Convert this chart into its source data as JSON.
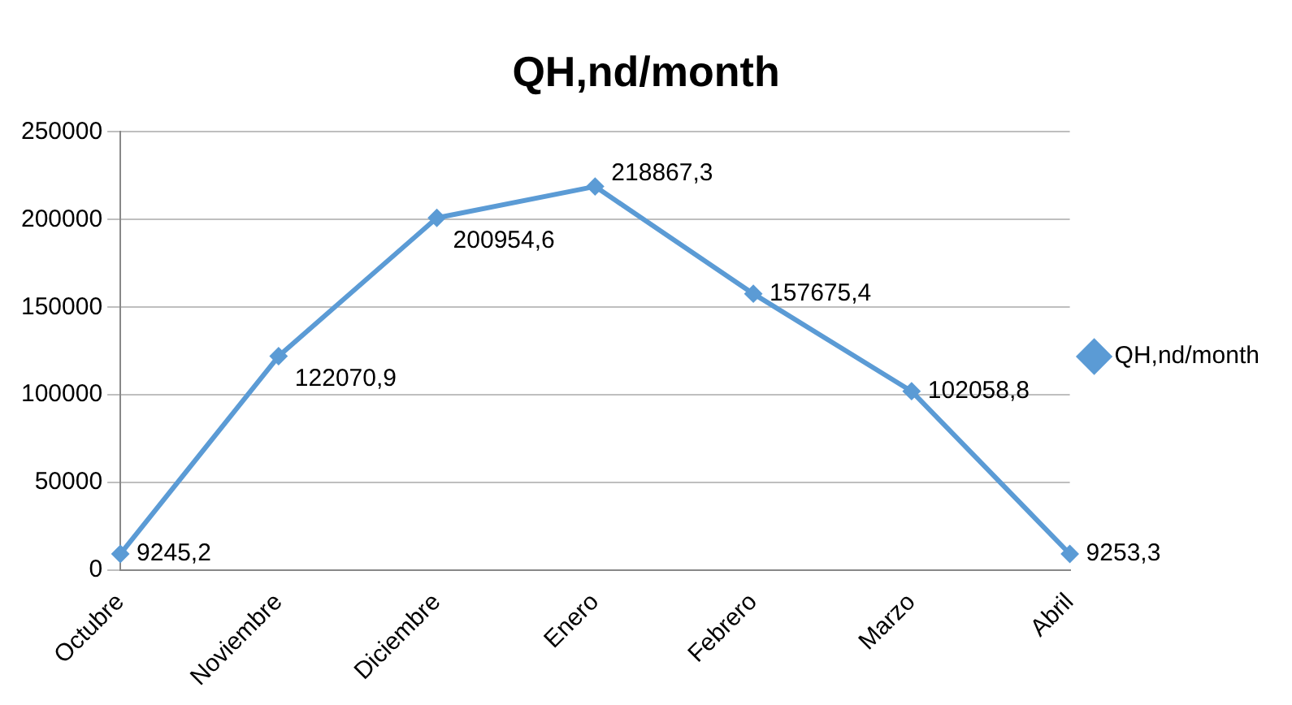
{
  "chart_data": {
    "type": "line",
    "title": "QH,nd/month",
    "categories": [
      "Octubre",
      "Noviembre",
      "Diciembre",
      "Enero",
      "Febrero",
      "Marzo",
      "Abril"
    ],
    "series": [
      {
        "name": "QH,nd/month",
        "color": "#5b9bd5",
        "values": [
          9245.2,
          122070.9,
          200954.6,
          218867.3,
          157675.4,
          102058.8,
          9253.3
        ],
        "value_labels": [
          "9245,2",
          "122070,9",
          "200954,6",
          "218867,3",
          "157675,4",
          "102058,8",
          "9253,3"
        ]
      }
    ],
    "ylim": [
      0,
      250000
    ],
    "yticks": [
      0,
      50000,
      100000,
      150000,
      200000,
      250000
    ],
    "grid": "y",
    "legend": "right",
    "marker": "diamond",
    "line_style": "solid"
  }
}
